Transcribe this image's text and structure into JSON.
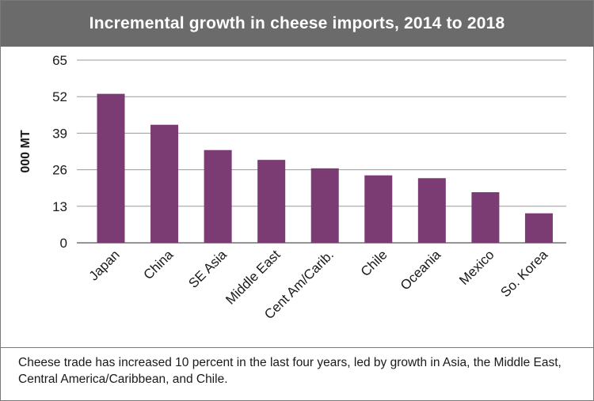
{
  "title": "Incremental growth in cheese imports, 2014 to 2018",
  "caption": "Cheese trade has increased 10 percent in the last four years, led by growth in Asia, the Middle East, Central America/Caribbean, and Chile.",
  "colors": {
    "bar": "#7b3b73",
    "header": "#6b6b6b",
    "grid": "#9a9a9a"
  },
  "chart_data": {
    "type": "bar",
    "title": "Incremental growth in cheese imports, 2014 to 2018",
    "xlabel": "",
    "ylabel": "000 MT",
    "ylim": [
      0,
      65
    ],
    "yticks": [
      0,
      13,
      26,
      39,
      52,
      65
    ],
    "grid": true,
    "categories": [
      "Japan",
      "China",
      "SE Asia",
      "Middle East",
      "Cent Am/Carib.",
      "Chile",
      "Oceania",
      "Mexico",
      "So. Korea"
    ],
    "values": [
      53,
      42,
      33,
      29.5,
      26.5,
      24,
      23,
      18,
      10.5
    ]
  }
}
